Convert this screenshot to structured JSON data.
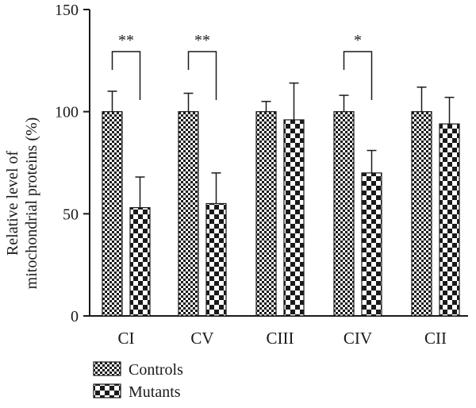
{
  "chart_data": {
    "type": "bar",
    "categories": [
      "CI",
      "CV",
      "CIII",
      "CIV",
      "CII"
    ],
    "series": [
      {
        "name": "Controls",
        "values": [
          100,
          100,
          100,
          100,
          100
        ],
        "errors": [
          10,
          9,
          5,
          8,
          12
        ],
        "pattern": "fine-checker"
      },
      {
        "name": "Mutants",
        "values": [
          53,
          55,
          96,
          70,
          94
        ],
        "errors": [
          15,
          15,
          18,
          11,
          13
        ],
        "pattern": "coarse-checker"
      }
    ],
    "ylabel": [
      "Relative level of",
      "mitochondrial proteins (%)"
    ],
    "ylim": [
      0,
      150
    ],
    "yticks": [
      0,
      50,
      100,
      150
    ],
    "significance": [
      "**",
      "**",
      "",
      "*",
      ""
    ],
    "grid": false,
    "legend": "bottom-left"
  }
}
